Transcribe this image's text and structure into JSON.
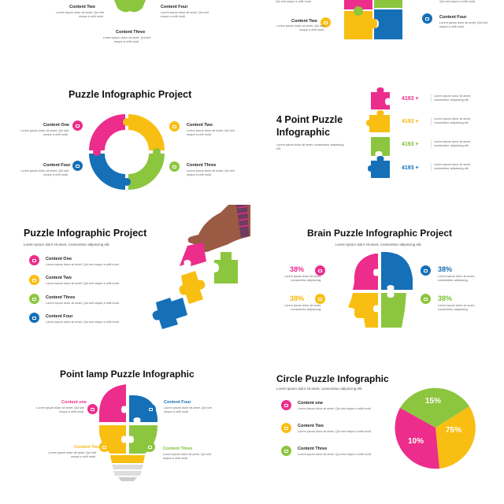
{
  "slides": {
    "top_left": {
      "items": [
        {
          "label": "Content Two",
          "text": "Lorem ipsum dolor sit amet, Qui sint neque a velit modi."
        },
        {
          "label": "Content Four",
          "text": "Lorem ipsum dolor sit amet, Qui sint neque a velit modi."
        },
        {
          "label": "Content Three",
          "text": "Lorem ipsum dolor sit amet, Qui sint neque a velit modi."
        }
      ]
    },
    "top_right": {
      "top_text": "Qui sint neque a velit modi.",
      "top_text_right": "Qui sint neque a velit modi.",
      "items": [
        {
          "label": "Content Two",
          "text": "Lorem ipsum dolor sit amet, Qui sint neque a velit modi."
        },
        {
          "label": "Content Four",
          "text": "Lorem ipsum dolor sit amet, Qui sint neque a velit modi."
        }
      ]
    },
    "ring": {
      "title": "Puzzle Infographic Project",
      "items": [
        {
          "label": "Content One",
          "text": "Lorem ipsum dolor sit amet, Qui sint neque a velit modi."
        },
        {
          "label": "Content Two",
          "text": "Lorem ipsum dolor sit amet, Qui sint neque a velit modi."
        },
        {
          "label": "Content Four",
          "text": "Lorem ipsum dolor sit amet, Qui sint neque a velit modi."
        },
        {
          "label": "Content Three",
          "text": "Lorem ipsum dolor sit amet, Qui sint neque a velit modi."
        }
      ]
    },
    "four_point": {
      "title_line1": "4 Point Puzzle",
      "title_line2": "Infographic",
      "subtitle": "Lorem ipsum dolor sit amet, consectetur adipiscing elit.",
      "rows": [
        {
          "value": "4193 +",
          "text": "Lorem ipsum dolor sit amet, consectetur adipiscing elit."
        },
        {
          "value": "4193 +",
          "text": "Lorem ipsum dolor sit amet, consectetur adipiscing elit."
        },
        {
          "value": "4193 +",
          "text": "Lorem ipsum dolor sit amet, consectetur adipiscing elit."
        },
        {
          "value": "4193 +",
          "text": "Lorem ipsum dolor sit amet, consectetur adipiscing elit."
        }
      ]
    },
    "hand": {
      "title": "Puzzle Infographic Project",
      "subtitle": "Lorem ipsum dolor sit amet, consectetur adipiscing elit.",
      "items": [
        {
          "label": "Content One",
          "text": "Lorem ipsum dolor sit amet, Qui sint neque a velit modi."
        },
        {
          "label": "Content Two",
          "text": "Lorem ipsum dolor sit amet, Qui sint neque a velit modi."
        },
        {
          "label": "Content Three",
          "text": "Lorem ipsum dolor sit amet, Qui sint neque a velit modi."
        },
        {
          "label": "Content Four",
          "text": "Lorem ipsum dolor sit amet, Qui sint neque a velit modi."
        }
      ]
    },
    "brain": {
      "title": "Brain Puzzle Infographic Project",
      "subtitle": "Lorem ipsum dolor sit amet, consectetur adipiscing elit.",
      "items": [
        {
          "value": "38%",
          "text": "Lorem ipsum dolor sit amet, consectetur adipiscing."
        },
        {
          "value": "38%",
          "text": "Lorem ipsum dolor sit amet, consectetur adipiscing."
        },
        {
          "value": "38%",
          "text": "Lorem ipsum dolor sit amet, consectetur adipiscing."
        },
        {
          "value": "38%",
          "text": "Lorem ipsum dolor sit amet, consectetur adipiscing."
        }
      ]
    },
    "lamp": {
      "title": "Point lamp Puzzle Infographic",
      "items": [
        {
          "label": "Content one",
          "text": "Lorem ipsum dolor sit amet, Qui sint neque a velit modi."
        },
        {
          "label": "Content Four",
          "text": "Lorem ipsum dolor sit amet, Qui sint neque a velit modi."
        },
        {
          "label": "Content Two",
          "text": "Lorem ipsum dolor sit amet, Qui sint neque a velit modi."
        },
        {
          "label": "Content Three",
          "text": "Lorem ipsum dolor sit amet, Qui sint neque a velit modi."
        }
      ]
    },
    "circle": {
      "title": "Circle Puzzle Infographic",
      "subtitle": "Lorem ipsum dolor sit amet, consectetur adipiscing elit.",
      "items": [
        {
          "label": "Content one",
          "text": "Lorem ipsum dolor sit amet, Qui sint neque a velit modi."
        },
        {
          "label": "Content Two",
          "text": "Lorem ipsum dolor sit amet, Qui sint neque a velit modi."
        },
        {
          "label": "Content Three",
          "text": "Lorem ipsum dolor sit amet, Qui sint neque a velit modi."
        }
      ],
      "values": [
        "15%",
        "75%",
        "10%"
      ]
    }
  },
  "colors": {
    "pink": "#ec2d8c",
    "yellow": "#f8be12",
    "green": "#8cc63f",
    "blue": "#1570b8"
  }
}
